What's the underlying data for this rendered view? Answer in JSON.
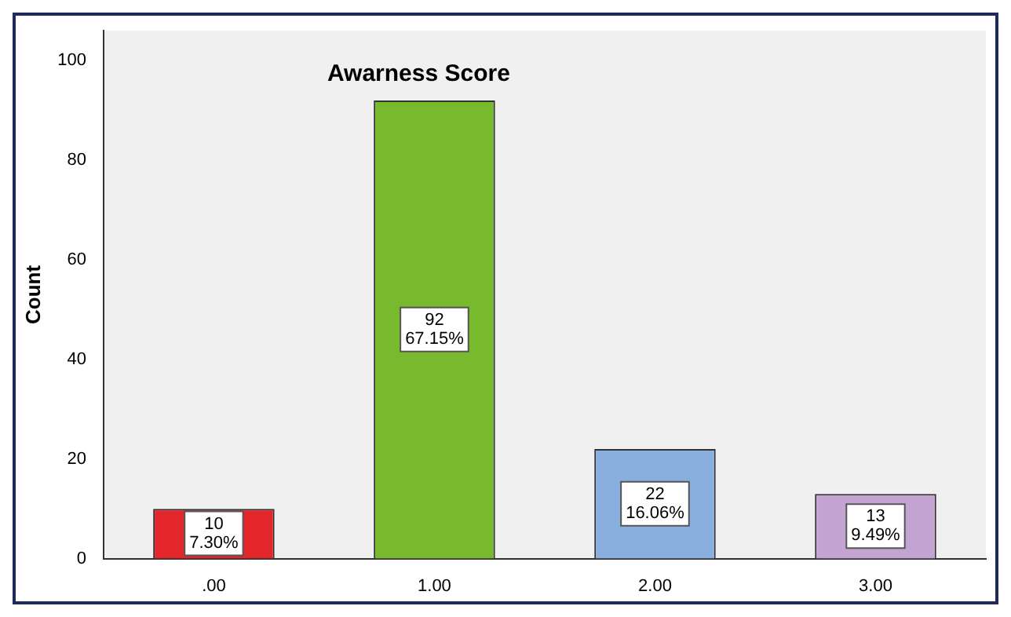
{
  "chart_data": {
    "type": "bar",
    "title": "Awarness Score",
    "ylabel": "Count",
    "categories": [
      ".00",
      "1.00",
      "2.00",
      "3.00"
    ],
    "values": [
      10,
      92,
      22,
      13
    ],
    "colors": [
      "#e3262b",
      "#79b92e",
      "#89afde",
      "#c3a4d2"
    ],
    "value_labels": [
      "10\n7.30%",
      "92\n67.15%",
      "22\n16.06%",
      "13\n9.49%"
    ],
    "ylim": [
      0,
      106
    ],
    "yticks": [
      0,
      20,
      40,
      60,
      80,
      100
    ],
    "grid": false,
    "legend": false
  }
}
